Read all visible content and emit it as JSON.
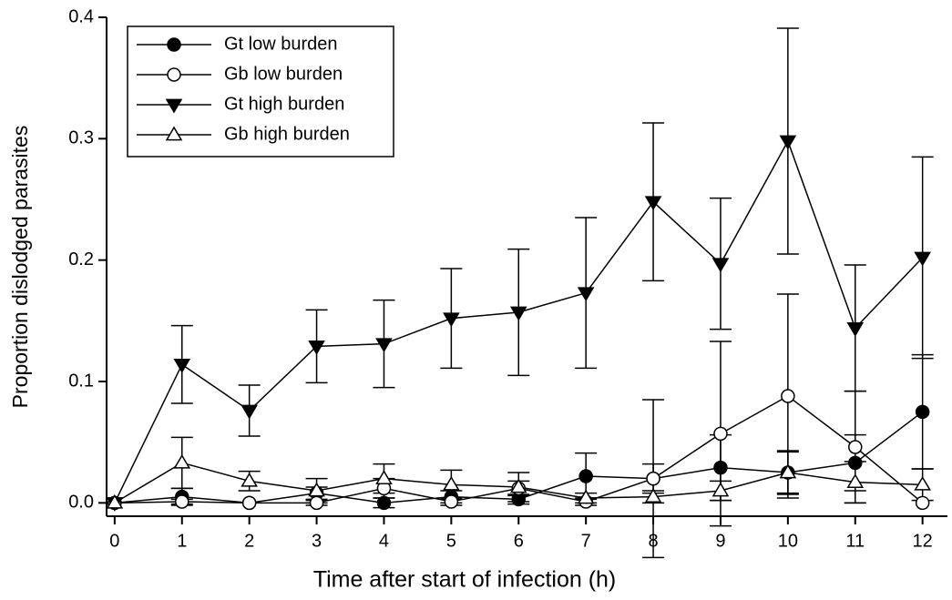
{
  "chart_data": {
    "type": "line",
    "xlabel": "Time after start of infection (h)",
    "ylabel": "Proportion dislodged parasites",
    "x": [
      0,
      1,
      2,
      3,
      4,
      5,
      6,
      7,
      8,
      9,
      10,
      11,
      12
    ],
    "xlim": [
      -0.12,
      12.37
    ],
    "xticks": [
      0,
      1,
      2,
      3,
      4,
      5,
      6,
      7,
      8,
      9,
      10,
      11,
      12
    ],
    "ylim": [
      -0.011,
      0.4
    ],
    "yticks": [
      {
        "value": 0,
        "label": "0.0"
      },
      0.1,
      0.2,
      0.3,
      0.4
    ],
    "legend": "upper left",
    "series": [
      {
        "name": "Gt low burden",
        "color": "#000000",
        "marker": "circle",
        "filled": true,
        "values": [
          0,
          0.005,
          0,
          0.008,
          0,
          0.005,
          0.003,
          0.022,
          0.02,
          0.029,
          0.025,
          0.033,
          0.075
        ],
        "errors": [
          0,
          0.007,
          0,
          0.005,
          0.004,
          0.005,
          0.004,
          0.019,
          0.012,
          0.027,
          0.017,
          0.023,
          0.047
        ]
      },
      {
        "name": "Gb low burden",
        "color": "#000000",
        "marker": "circle",
        "filled": false,
        "values": [
          0,
          0.001,
          0,
          0,
          0.012,
          0.001,
          0.012,
          0.001,
          0.02,
          0.057,
          0.088,
          0.046,
          0
        ],
        "errors": [
          0,
          0.002,
          0,
          0.002,
          0.008,
          0.003,
          0.006,
          0.003,
          0.065,
          0.076,
          0.084,
          0.046,
          0
        ]
      },
      {
        "name": "Gt high burden",
        "color": "#000000",
        "marker": "triangle-down",
        "filled": true,
        "values": [
          0,
          0.114,
          0.076,
          0.129,
          0.131,
          0.152,
          0.157,
          0.173,
          0.248,
          0.197,
          0.298,
          0.144,
          0.202
        ],
        "errors": [
          0,
          0.032,
          0.021,
          0.03,
          0.036,
          0.041,
          0.052,
          0.062,
          0.065,
          0.054,
          0.093,
          0.052,
          0.083
        ]
      },
      {
        "name": "Gb high burden",
        "color": "#000000",
        "marker": "triangle-up",
        "filled": false,
        "values": [
          0,
          0.033,
          0.018,
          0.01,
          0.02,
          0.015,
          0.013,
          0.004,
          0.005,
          0.01,
          0.025,
          0.017,
          0.015
        ],
        "errors": [
          0,
          0.021,
          0.008,
          0.01,
          0.012,
          0.012,
          0.012,
          0.004,
          0.005,
          0.008,
          0.018,
          0.017,
          0.013
        ]
      }
    ]
  }
}
